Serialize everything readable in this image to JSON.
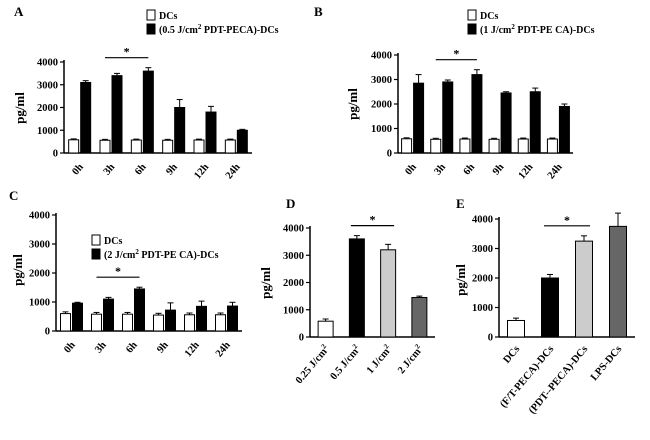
{
  "chart_data": [
    {
      "type": "bar",
      "panel": "A",
      "ylabel": "pg/ml",
      "ylim": [
        0,
        4000
      ],
      "yticks": [
        0,
        1000,
        2000,
        3000,
        4000
      ],
      "categories": [
        "0h",
        "3h",
        "6h",
        "9h",
        "12h",
        "24h"
      ],
      "series": [
        {
          "name": "DCs",
          "color": "#ffffff",
          "values": [
            580,
            560,
            570,
            560,
            570,
            570
          ],
          "errors": [
            40,
            40,
            40,
            40,
            40,
            40
          ]
        },
        {
          "name": "(0.5 J/cm² PDT-PECA)-DCs",
          "color": "#000000",
          "values": [
            3100,
            3400,
            3600,
            2000,
            1800,
            1000
          ],
          "errors": [
            80,
            100,
            150,
            350,
            250,
            40
          ]
        }
      ],
      "significance": {
        "label": "*",
        "from": 1,
        "to": 2
      }
    },
    {
      "type": "bar",
      "panel": "B",
      "ylabel": "pg/ml",
      "ylim": [
        0,
        4000
      ],
      "yticks": [
        0,
        1000,
        2000,
        3000,
        4000
      ],
      "categories": [
        "0h",
        "3h",
        "6h",
        "9h",
        "12h",
        "24h"
      ],
      "series": [
        {
          "name": "DCs",
          "color": "#ffffff",
          "values": [
            580,
            560,
            570,
            560,
            570,
            570
          ],
          "errors": [
            40,
            40,
            40,
            40,
            40,
            40
          ]
        },
        {
          "name": "(1 J/cm² PDT-PE CA)-DCs",
          "color": "#000000",
          "values": [
            2850,
            2900,
            3200,
            2450,
            2500,
            1900
          ],
          "errors": [
            350,
            80,
            200,
            50,
            150,
            100
          ]
        }
      ],
      "significance": {
        "label": "*",
        "from": 1,
        "to": 2
      }
    },
    {
      "type": "bar",
      "panel": "C",
      "ylabel": "pg/ml",
      "ylim": [
        0,
        4000
      ],
      "yticks": [
        0,
        1000,
        2000,
        3000,
        4000
      ],
      "categories": [
        "0h",
        "3h",
        "6h",
        "9h",
        "12h",
        "24h"
      ],
      "series": [
        {
          "name": "DCs",
          "color": "#ffffff",
          "values": [
            600,
            580,
            580,
            550,
            560,
            560
          ],
          "errors": [
            60,
            60,
            60,
            60,
            60,
            60
          ]
        },
        {
          "name": "(2 J/cm² PDT-PE CA)-DCs",
          "color": "#000000",
          "values": [
            960,
            1100,
            1450,
            720,
            850,
            860
          ],
          "errors": [
            30,
            60,
            60,
            250,
            180,
            130
          ]
        }
      ],
      "significance": {
        "label": "*",
        "from": 1,
        "to": 2
      }
    },
    {
      "type": "bar",
      "panel": "D",
      "ylabel": "pg/ml",
      "ylim": [
        0,
        4000
      ],
      "yticks": [
        0,
        1000,
        2000,
        3000,
        4000
      ],
      "categories": [
        "0.25 J/cm²",
        "0.5 J/cm²",
        "1 J/cm²",
        "2 J/cm²"
      ],
      "colors": [
        "#ffffff",
        "#000000",
        "#cccccc",
        "#666666"
      ],
      "values": [
        580,
        3600,
        3200,
        1450
      ],
      "errors": [
        80,
        120,
        200,
        50
      ],
      "significance": {
        "label": "*",
        "from": 1,
        "to": 2
      }
    },
    {
      "type": "bar",
      "panel": "E",
      "ylabel": "pg/ml",
      "ylim": [
        0,
        4000
      ],
      "yticks": [
        0,
        1000,
        2000,
        3000,
        4000
      ],
      "categories": [
        "DCs",
        "(F/T-PECA)-DCs",
        "(PDT--PECA)-DCs",
        "LPS-DCs"
      ],
      "colors": [
        "#ffffff",
        "#000000",
        "#cccccc",
        "#666666"
      ],
      "values": [
        560,
        2000,
        3250,
        3750
      ],
      "errors": [
        80,
        120,
        180,
        450
      ],
      "significance": {
        "label": "*",
        "from": 1,
        "to": 2
      }
    }
  ]
}
